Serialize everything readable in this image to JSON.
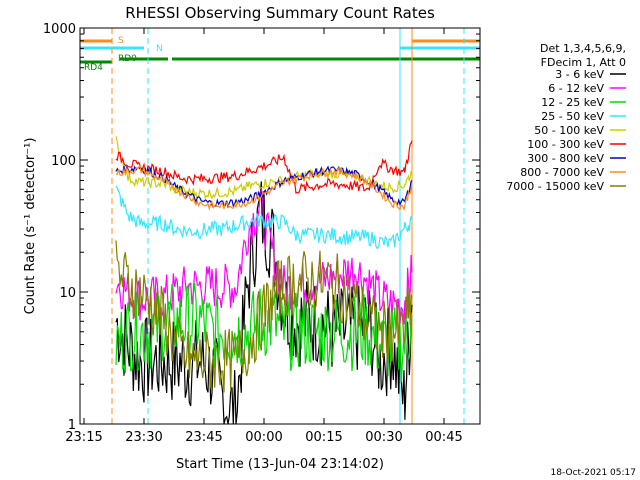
{
  "chart_data": {
    "type": "line",
    "title": "RHESSI Observing Summary Count Rates",
    "xlabel": "Start Time (13-Jun-04 23:14:02)",
    "ylabel": "Count Rate (s⁻¹ detector⁻¹)",
    "yscale": "log",
    "ylim": [
      1,
      1000
    ],
    "xlim": [
      "23:14",
      "00:54"
    ],
    "x_ticks": [
      "23:15",
      "23:30",
      "23:45",
      "00:00",
      "00:15",
      "00:30",
      "00:45"
    ],
    "y_ticks": [
      "1",
      "10",
      "100",
      "1000"
    ],
    "timestamp": "18-Oct-2021 05:17",
    "legend_header": [
      "Det 1,3,4,5,6,9,",
      "FDecim 1, Att 0"
    ],
    "legend_position": "right",
    "flag_labels": [
      "S",
      "N",
      "RD0",
      "RD4"
    ],
    "flags": [
      {
        "label": "S",
        "color": "#ff8c1a",
        "intervals": [
          [
            "23:14",
            "23:22"
          ],
          [
            "00:37",
            "00:54"
          ]
        ]
      },
      {
        "label": "N",
        "color": "#33e6ff",
        "intervals": [
          [
            "23:14",
            "23:30"
          ],
          [
            "00:34",
            "00:54"
          ]
        ]
      },
      {
        "label": "RD0",
        "color": "#008800",
        "intervals": [
          [
            "23:24",
            "23:36"
          ],
          [
            "23:37",
            "00:06"
          ],
          [
            "00:06",
            "00:27"
          ],
          [
            "00:27",
            "00:54"
          ]
        ]
      },
      {
        "label": "RD4",
        "color": "#008800",
        "intervals": [
          [
            "23:14",
            "23:22"
          ]
        ]
      }
    ],
    "vertical_markers": [
      {
        "time": "23:14",
        "color": "#33e6ff",
        "style": "solid"
      },
      {
        "time": "23:22",
        "color": "#ff8c1a",
        "style": "dashed"
      },
      {
        "time": "23:31",
        "color": "#33e6ff",
        "style": "dashed"
      },
      {
        "time": "00:34",
        "color": "#33e6ff",
        "style": "solid"
      },
      {
        "time": "00:37",
        "color": "#ff8c1a",
        "style": "solid"
      },
      {
        "time": "00:50",
        "color": "#33e6ff",
        "style": "dashed"
      }
    ],
    "time_points": [
      "23:23",
      "23:26",
      "23:29",
      "23:32",
      "23:35",
      "23:38",
      "23:41",
      "23:44",
      "23:47",
      "23:50",
      "23:53",
      "23:56",
      "23:59",
      "00:02",
      "00:05",
      "00:08",
      "00:11",
      "00:14",
      "00:17",
      "00:20",
      "00:23",
      "00:26",
      "00:29",
      "00:32",
      "00:35",
      "00:37"
    ],
    "series": [
      {
        "name": "3 - 6 keV",
        "color": "#000000",
        "values": [
          6,
          4,
          3,
          3,
          3,
          3,
          2.8,
          3,
          2.5,
          1.5,
          1.2,
          12,
          40,
          25,
          8,
          6,
          6,
          6,
          5,
          5,
          5,
          6,
          3,
          4,
          1.5,
          8
        ]
      },
      {
        "name": "6 - 12 keV",
        "color": "#ff00ff",
        "values": [
          12,
          10,
          9,
          9,
          9,
          10,
          11,
          11,
          11,
          11,
          11,
          30,
          45,
          20,
          11,
          11,
          12,
          12,
          13,
          14,
          15,
          12,
          9,
          8,
          8,
          14
        ]
      },
      {
        "name": "12 - 25 keV",
        "color": "#00dd00",
        "values": [
          4,
          5,
          5,
          5,
          6,
          6,
          6,
          6,
          5,
          5,
          5,
          5,
          6,
          6,
          5,
          5,
          5,
          5,
          5,
          5,
          5,
          5,
          4,
          4,
          4,
          6
        ]
      },
      {
        "name": "25 - 50 keV",
        "color": "#33e6ff",
        "values": [
          60,
          38,
          33,
          33,
          33,
          30,
          29,
          29,
          30,
          30,
          32,
          34,
          35,
          34,
          34,
          27,
          27,
          27,
          27,
          26,
          26,
          26,
          24,
          23,
          30,
          35
        ]
      },
      {
        "name": "50 - 100 keV",
        "color": "#cccc00",
        "values": [
          140,
          73,
          68,
          67,
          66,
          60,
          57,
          56,
          56,
          57,
          58,
          63,
          66,
          68,
          70,
          74,
          77,
          79,
          79,
          78,
          75,
          70,
          64,
          62,
          65,
          80
        ]
      },
      {
        "name": "100 - 300 keV",
        "color": "#ff0000",
        "values": [
          110,
          95,
          88,
          85,
          82,
          75,
          72,
          72,
          73,
          74,
          76,
          82,
          88,
          95,
          105,
          60,
          62,
          65,
          66,
          65,
          63,
          60,
          95,
          85,
          80,
          140
        ]
      },
      {
        "name": "300 - 800 keV",
        "color": "#0000cc",
        "values": [
          82,
          85,
          88,
          80,
          73,
          62,
          55,
          49,
          47,
          47,
          48,
          50,
          55,
          62,
          70,
          74,
          78,
          82,
          84,
          82,
          78,
          70,
          60,
          50,
          47,
          70
        ]
      },
      {
        "name": "800 - 7000 keV",
        "color": "#ff8c1a",
        "values": [
          80,
          82,
          85,
          77,
          70,
          60,
          53,
          47,
          45,
          45,
          46,
          48,
          53,
          60,
          68,
          72,
          76,
          80,
          82,
          80,
          76,
          68,
          57,
          47,
          44,
          65
        ]
      },
      {
        "name": "7000 - 15000 keV",
        "color": "#808000",
        "values": [
          14,
          12,
          10,
          8,
          6,
          4,
          3,
          3,
          3,
          3,
          3,
          4,
          6,
          9,
          11,
          12,
          12,
          12,
          12,
          10,
          8,
          6,
          5,
          5,
          5,
          9
        ]
      }
    ]
  }
}
